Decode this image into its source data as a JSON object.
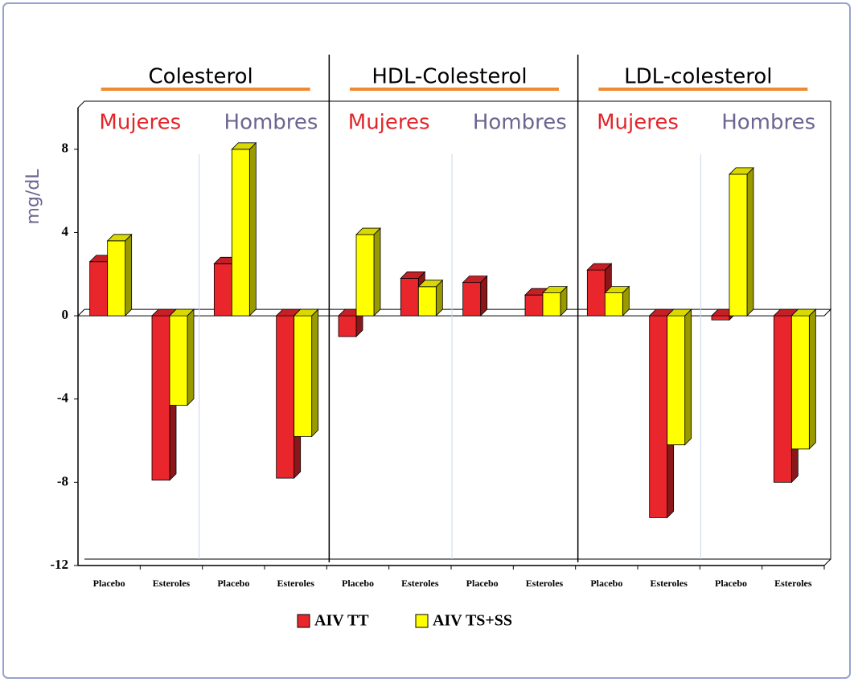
{
  "chart_data": {
    "type": "bar3d",
    "y_label": "mg/dL",
    "categories": [
      "Placebo",
      "Esteroles",
      "Placebo",
      "Esteroles",
      "Placebo",
      "Esteroles",
      "Placebo",
      "Esteroles",
      "Placebo",
      "Esteroles",
      "Placebo",
      "Esteroles"
    ],
    "series": [
      {
        "name": "AIV TT",
        "color": "#e8262b",
        "values": [
          2.6,
          -7.9,
          2.5,
          -7.8,
          -1.0,
          1.8,
          1.6,
          1.0,
          2.2,
          -9.7,
          -0.2,
          -8.0
        ]
      },
      {
        "name": "AIV TS+SS",
        "color": "#ffff00",
        "values": [
          3.6,
          -4.3,
          8.0,
          -5.8,
          3.9,
          1.4,
          null,
          1.1,
          1.1,
          -6.2,
          6.8,
          -6.4
        ]
      }
    ],
    "groups": [
      {
        "title": "Colesterol",
        "subgroups": [
          {
            "name": "Mujeres",
            "color": "#e3262b"
          },
          {
            "name": "Hombres",
            "color": "#6b6691"
          }
        ]
      },
      {
        "title": "HDL-Colesterol",
        "subgroups": [
          {
            "name": "Mujeres",
            "color": "#e3262b"
          },
          {
            "name": "Hombres",
            "color": "#6b6691"
          }
        ]
      },
      {
        "title": "LDL-colesterol",
        "subgroups": [
          {
            "name": "Mujeres",
            "color": "#e3262b"
          },
          {
            "name": "Hombres",
            "color": "#6b6691"
          }
        ]
      }
    ],
    "ylim": [
      -12,
      10
    ],
    "yticks": [
      -12,
      -8,
      -4,
      0,
      4,
      8
    ]
  }
}
